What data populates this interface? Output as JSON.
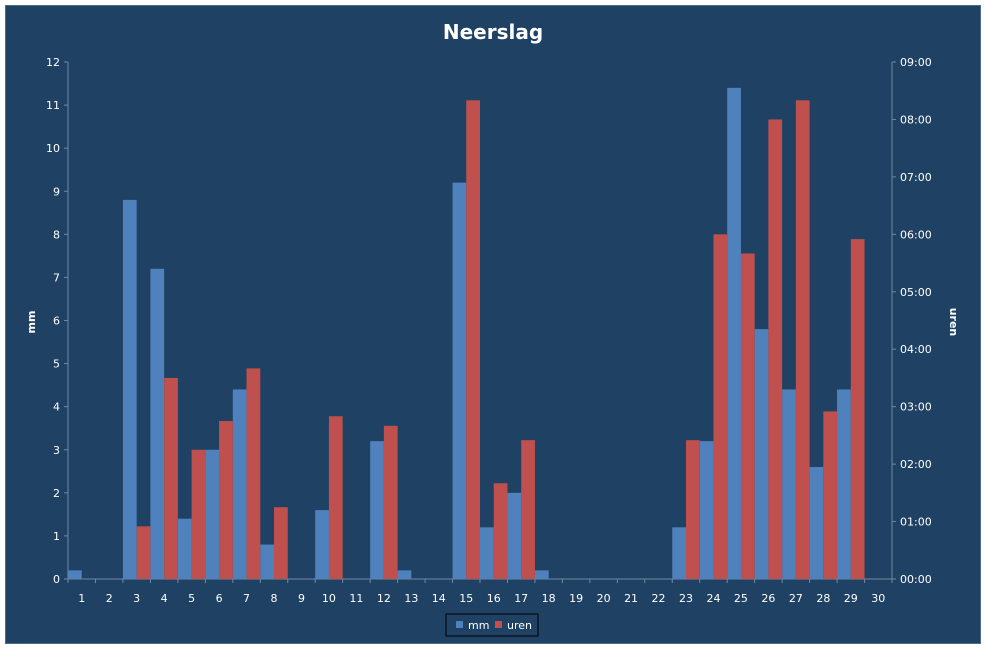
{
  "chart_data": {
    "type": "bar",
    "title": "Neerslag",
    "ylabel": "mm",
    "y2label": "uren",
    "ylim": [
      0,
      12
    ],
    "y2lim": [
      0,
      9
    ],
    "y_ticks": [
      "0",
      "1",
      "2",
      "3",
      "4",
      "5",
      "6",
      "7",
      "8",
      "9",
      "10",
      "11",
      "12"
    ],
    "y2_ticks": [
      "00:00",
      "01:00",
      "02:00",
      "03:00",
      "04:00",
      "05:00",
      "06:00",
      "07:00",
      "08:00",
      "09:00"
    ],
    "categories": [
      "1",
      "2",
      "3",
      "4",
      "5",
      "6",
      "7",
      "8",
      "9",
      "10",
      "11",
      "12",
      "13",
      "14",
      "15",
      "16",
      "17",
      "18",
      "19",
      "20",
      "21",
      "22",
      "23",
      "24",
      "25",
      "26",
      "27",
      "28",
      "29",
      "30"
    ],
    "grid": false,
    "legend_position": "bottom",
    "series": [
      {
        "name": "mm",
        "axis": "left",
        "color": "#4f81bd",
        "values": [
          0.2,
          0,
          8.8,
          7.2,
          1.4,
          3.0,
          4.4,
          0.8,
          0,
          1.6,
          0,
          3.2,
          0.2,
          0,
          9.2,
          1.2,
          2.0,
          0.2,
          0,
          0,
          0,
          0,
          1.2,
          3.2,
          11.4,
          5.8,
          4.4,
          2.6,
          4.4,
          0
        ]
      },
      {
        "name": "uren",
        "axis": "right",
        "color": "#c0504d",
        "values": [
          "00:00",
          "00:00",
          "00:55",
          "03:30",
          "02:15",
          "02:45",
          "03:40",
          "01:15",
          "00:00",
          "02:50",
          "00:00",
          "02:40",
          "00:00",
          "00:00",
          "08:20",
          "01:40",
          "02:25",
          "00:00",
          "00:00",
          "00:00",
          "00:00",
          "00:00",
          "02:25",
          "06:00",
          "05:40",
          "08:00",
          "08:20",
          "02:55",
          "05:55",
          "00:00"
        ]
      }
    ]
  }
}
